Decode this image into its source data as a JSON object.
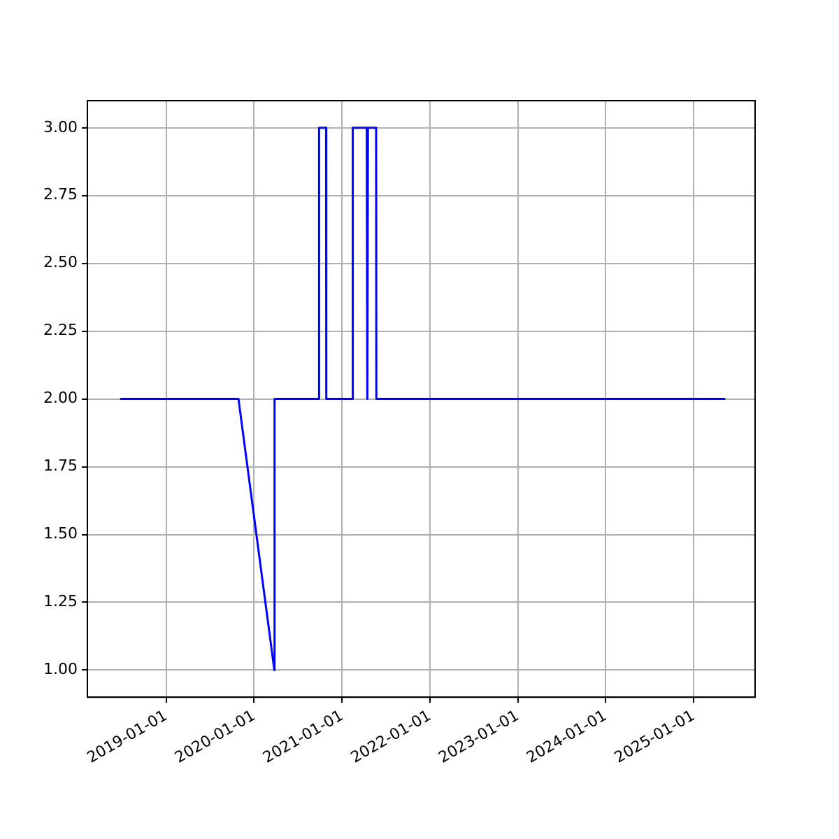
{
  "chart_data": {
    "type": "line",
    "x": [
      "2018-06-23",
      "2019-10-28",
      "2020-03-25",
      "2020-03-26",
      "2020-09-26",
      "2020-09-27",
      "2020-10-26",
      "2020-10-27",
      "2021-02-13",
      "2021-02-14",
      "2021-04-13",
      "2021-04-14",
      "2021-04-17",
      "2021-04-18",
      "2021-05-22",
      "2021-05-23",
      "2025-05-12"
    ],
    "series": [
      {
        "color": "#0000ff",
        "values": [
          2,
          2,
          1,
          2,
          2,
          3,
          3,
          2,
          2,
          3,
          3,
          2,
          2,
          3,
          3,
          2,
          2
        ]
      }
    ],
    "xlim": [
      "2018-02-07",
      "2025-09-13"
    ],
    "xticks": [
      "2019-01-01",
      "2020-01-01",
      "2021-01-01",
      "2022-01-01",
      "2023-01-01",
      "2024-01-01",
      "2025-01-01"
    ],
    "ylim": [
      0.9,
      3.1
    ],
    "yticks": [
      {
        "value": 1,
        "label": "1.00"
      },
      {
        "value": 1.25,
        "label": "1.25"
      },
      {
        "value": 1.5,
        "label": "1.50"
      },
      {
        "value": 1.75,
        "label": "1.75"
      },
      {
        "value": 2,
        "label": "2.00"
      },
      {
        "value": 2.25,
        "label": "2.25"
      },
      {
        "value": 2.5,
        "label": "2.50"
      },
      {
        "value": 2.75,
        "label": "2.75"
      },
      {
        "value": 3,
        "label": "3.00"
      }
    ],
    "grid": true,
    "marker": "none"
  }
}
